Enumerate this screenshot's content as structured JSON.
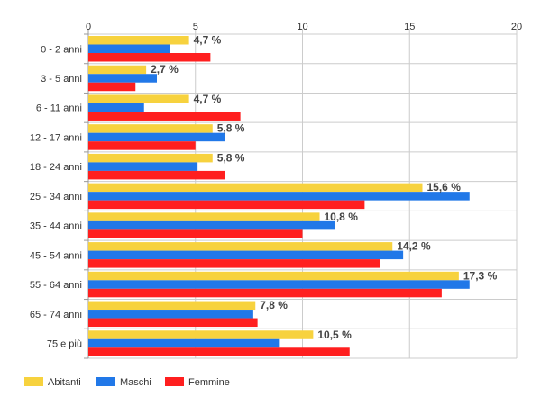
{
  "chart_data": {
    "type": "bar",
    "orientation": "horizontal",
    "categories": [
      "0 - 2 anni",
      "3 - 5 anni",
      "6 - 11 anni",
      "12 - 17 anni",
      "18 - 24 anni",
      "25 - 34 anni",
      "35 - 44 anni",
      "45 - 54 anni",
      "55 - 64 anni",
      "65 - 74 anni",
      "75 e più"
    ],
    "series": [
      {
        "name": "Abitanti",
        "color": "#f7d23e",
        "values": [
          4.7,
          2.7,
          4.7,
          5.8,
          5.8,
          15.6,
          10.8,
          14.2,
          17.3,
          7.8,
          10.5
        ]
      },
      {
        "name": "Maschi",
        "color": "#2178e8",
        "values": [
          3.8,
          3.2,
          2.6,
          6.4,
          5.1,
          17.8,
          11.5,
          14.7,
          17.8,
          7.7,
          8.9
        ]
      },
      {
        "name": "Femmine",
        "color": "#ff1f1f",
        "values": [
          5.7,
          2.2,
          7.1,
          5.0,
          6.4,
          12.9,
          10.0,
          13.6,
          16.5,
          7.9,
          12.2
        ]
      }
    ],
    "data_labels": [
      "4,7 %",
      "2,7 %",
      "4,7 %",
      "5,8 %",
      "5,8 %",
      "15,6 %",
      "10,8 %",
      "14,2 %",
      "17,3 %",
      "7,8 %",
      "10,5 %"
    ],
    "x_ticks": [
      "0",
      "5",
      "10",
      "15",
      "20"
    ],
    "xlim": [
      0,
      20
    ],
    "x_axis_position": "top",
    "grid": true,
    "legend_position": "bottom-left",
    "title": "",
    "xlabel": "",
    "ylabel": ""
  }
}
